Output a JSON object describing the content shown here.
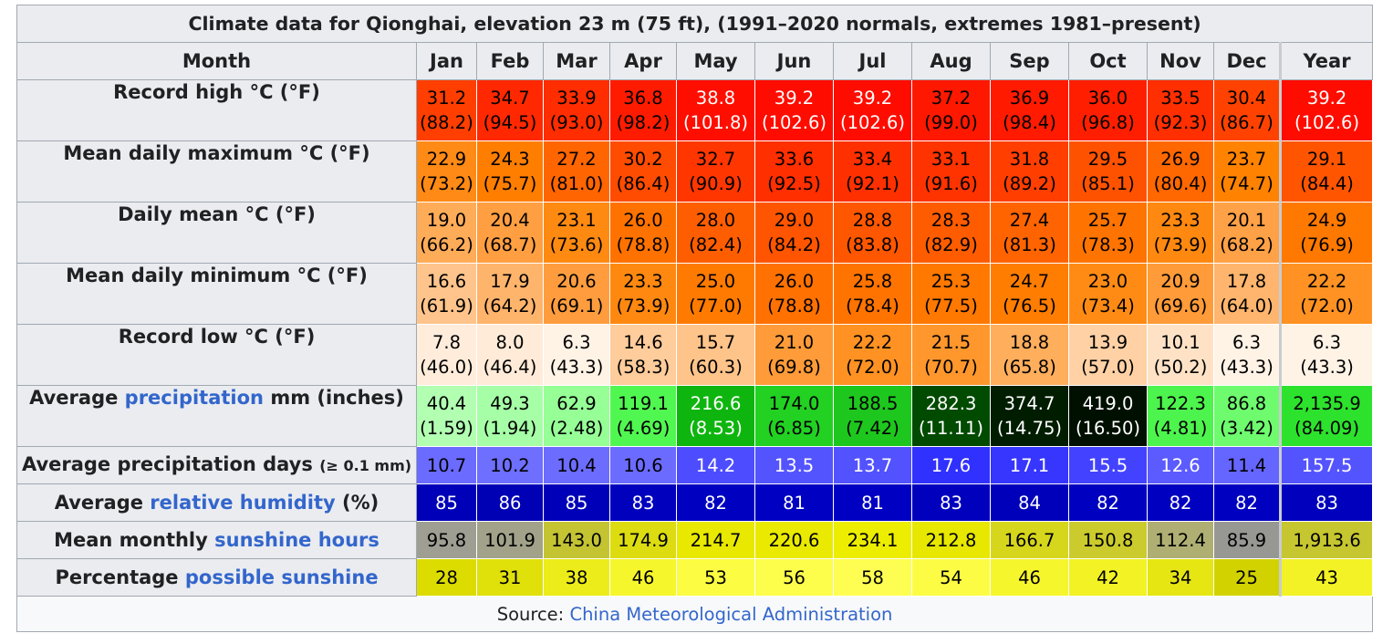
{
  "title": "Climate data for Qionghai, elevation 23 m (75 ft), (1991–2020 normals, extremes 1981–present)",
  "header": {
    "row_label": "Month",
    "months": [
      "Jan",
      "Feb",
      "Mar",
      "Apr",
      "May",
      "Jun",
      "Jul",
      "Aug",
      "Sep",
      "Oct",
      "Nov",
      "Dec"
    ],
    "year_label": "Year"
  },
  "rows": [
    {
      "label_main": "Record high °C (°F)",
      "values": [
        "31.2",
        "34.7",
        "33.9",
        "36.8",
        "38.8",
        "39.2",
        "39.2",
        "37.2",
        "36.9",
        "36.0",
        "33.5",
        "30.4",
        "39.2"
      ],
      "paren": [
        "(88.2)",
        "(94.5)",
        "(93.0)",
        "(98.2)",
        "(101.8)",
        "(102.6)",
        "(102.6)",
        "(99.0)",
        "(98.4)",
        "(96.8)",
        "(92.3)",
        "(86.7)",
        "(102.6)"
      ],
      "bg": [
        "#ff3e00",
        "#ff2800",
        "#ff2d00",
        "#ff1b00",
        "#ff0e00",
        "#ff0c00",
        "#ff0c00",
        "#ff1800",
        "#ff1a00",
        "#ff1f00",
        "#ff2f00",
        "#ff4200",
        "#ff0c00"
      ],
      "fg": [
        "#000000",
        "#000000",
        "#000000",
        "#000000",
        "#ffffff",
        "#ffffff",
        "#ffffff",
        "#000000",
        "#000000",
        "#000000",
        "#000000",
        "#000000",
        "#ffffff"
      ]
    },
    {
      "label_main": "Mean daily maximum °C (°F)",
      "values": [
        "22.9",
        "24.3",
        "27.2",
        "30.2",
        "32.7",
        "33.6",
        "33.4",
        "33.1",
        "31.8",
        "29.5",
        "26.9",
        "23.7",
        "29.1"
      ],
      "paren": [
        "(73.2)",
        "(75.7)",
        "(81.0)",
        "(86.4)",
        "(90.9)",
        "(92.5)",
        "(92.1)",
        "(91.6)",
        "(89.2)",
        "(85.1)",
        "(80.4)",
        "(74.7)",
        "(84.4)"
      ],
      "bg": [
        "#ff8a15",
        "#ff7e00",
        "#ff6500",
        "#ff4c00",
        "#ff3600",
        "#ff2f00",
        "#ff3000",
        "#ff3300",
        "#ff3e00",
        "#ff5200",
        "#ff6800",
        "#ff8300",
        "#ff5500"
      ],
      "fg": [
        "#000000",
        "#000000",
        "#000000",
        "#000000",
        "#000000",
        "#000000",
        "#000000",
        "#000000",
        "#000000",
        "#000000",
        "#000000",
        "#000000",
        "#000000"
      ]
    },
    {
      "label_main": "Daily mean °C (°F)",
      "values": [
        "19.0",
        "20.4",
        "23.1",
        "26.0",
        "28.0",
        "29.0",
        "28.8",
        "28.3",
        "27.4",
        "25.7",
        "23.3",
        "20.1",
        "24.9"
      ],
      "paren": [
        "(66.2)",
        "(68.7)",
        "(73.6)",
        "(78.8)",
        "(82.4)",
        "(84.2)",
        "(83.8)",
        "(82.9)",
        "(81.3)",
        "(78.3)",
        "(73.9)",
        "(68.2)",
        "(76.9)"
      ],
      "bg": [
        "#ffac59",
        "#ff9f41",
        "#ff8a12",
        "#ff7200",
        "#ff5e00",
        "#ff5500",
        "#ff5700",
        "#ff5c00",
        "#ff6400",
        "#ff7400",
        "#ff8910",
        "#ffa146",
        "#ff7900"
      ],
      "fg": [
        "#000000",
        "#000000",
        "#000000",
        "#000000",
        "#000000",
        "#000000",
        "#000000",
        "#000000",
        "#000000",
        "#000000",
        "#000000",
        "#000000",
        "#000000"
      ]
    },
    {
      "label_main": "Mean daily minimum °C (°F)",
      "values": [
        "16.6",
        "17.9",
        "20.6",
        "23.3",
        "25.0",
        "26.0",
        "25.8",
        "25.3",
        "24.7",
        "23.0",
        "20.9",
        "17.8",
        "22.2"
      ],
      "paren": [
        "(61.9)",
        "(64.2)",
        "(69.1)",
        "(73.9)",
        "(77.0)",
        "(78.8)",
        "(78.4)",
        "(77.5)",
        "(76.5)",
        "(73.4)",
        "(69.6)",
        "(64.0)",
        "(72.0)"
      ],
      "bg": [
        "#ffc48b",
        "#ffb46b",
        "#ff9d3e",
        "#ff8910",
        "#ff7a00",
        "#ff7100",
        "#ff7300",
        "#ff7800",
        "#ff7d00",
        "#ff8b14",
        "#ff9b38",
        "#ffb56d",
        "#ff9222"
      ],
      "fg": [
        "#000000",
        "#000000",
        "#000000",
        "#000000",
        "#000000",
        "#000000",
        "#000000",
        "#000000",
        "#000000",
        "#000000",
        "#000000",
        "#000000",
        "#000000"
      ]
    },
    {
      "label_main": "Record low °C (°F)",
      "values": [
        "7.8",
        "8.0",
        "6.3",
        "14.6",
        "15.7",
        "21.0",
        "22.2",
        "21.5",
        "18.8",
        "13.9",
        "10.1",
        "6.3",
        "6.3"
      ],
      "paren": [
        "(46.0)",
        "(46.4)",
        "(43.3)",
        "(58.3)",
        "(60.3)",
        "(69.8)",
        "(72.0)",
        "(70.7)",
        "(65.8)",
        "(57.0)",
        "(50.2)",
        "(43.3)",
        "(43.3)"
      ],
      "bg": [
        "#ffecdb",
        "#ffebd8",
        "#fff3e6",
        "#ffcc9b",
        "#ffc48a",
        "#ff9b38",
        "#ff9222",
        "#ff972c",
        "#ffae5c",
        "#ffd1a5",
        "#ffe2c6",
        "#fff3e6",
        "#fff3e6"
      ],
      "fg": [
        "#000000",
        "#000000",
        "#000000",
        "#000000",
        "#000000",
        "#000000",
        "#000000",
        "#000000",
        "#000000",
        "#000000",
        "#000000",
        "#000000",
        "#000000"
      ]
    },
    {
      "label_pre": "Average ",
      "label_link": "precipitation",
      "label_post": " mm (inches)",
      "values": [
        "40.4",
        "49.3",
        "62.9",
        "119.1",
        "216.6",
        "174.0",
        "188.5",
        "282.3",
        "374.7",
        "419.0",
        "122.3",
        "86.8",
        "2,135.9"
      ],
      "paren": [
        "(1.59)",
        "(1.94)",
        "(2.48)",
        "(4.69)",
        "(8.53)",
        "(6.85)",
        "(7.42)",
        "(11.11)",
        "(14.75)",
        "(16.50)",
        "(4.81)",
        "(3.42)",
        "(84.09)"
      ],
      "bg": [
        "#b2ffb2",
        "#a6ffa6",
        "#96ff96",
        "#51f751",
        "#0fb50f",
        "#22d122",
        "#1ec71e",
        "#004b00",
        "#001d00",
        "#001000",
        "#4df44d",
        "#6efc6e",
        "#2de22d"
      ],
      "fg": [
        "#000000",
        "#000000",
        "#000000",
        "#000000",
        "#ffffff",
        "#000000",
        "#000000",
        "#ffffff",
        "#ffffff",
        "#ffffff",
        "#000000",
        "#000000",
        "#000000"
      ]
    },
    {
      "label_pre": "Average precipitation days ",
      "label_small": "(≥ 0.1 mm)",
      "values": [
        "10.7",
        "10.2",
        "10.4",
        "10.6",
        "14.2",
        "13.5",
        "13.7",
        "17.6",
        "17.1",
        "15.5",
        "12.6",
        "11.4",
        "157.5"
      ],
      "bg": [
        "#6b6bff",
        "#6e6eff",
        "#6c6cff",
        "#6b6bff",
        "#4d4dff",
        "#5454ff",
        "#5252ff",
        "#3131ff",
        "#3636ff",
        "#4343ff",
        "#5b5bff",
        "#6565ff",
        "#5454ff"
      ],
      "fg": [
        "#000000",
        "#000000",
        "#000000",
        "#000000",
        "#ffffff",
        "#ffffff",
        "#ffffff",
        "#ffffff",
        "#ffffff",
        "#ffffff",
        "#ffffff",
        "#000000",
        "#ffffff"
      ]
    },
    {
      "label_pre": "Average ",
      "label_link": "relative humidity",
      "label_post": " (%)",
      "values": [
        "85",
        "86",
        "85",
        "83",
        "82",
        "81",
        "81",
        "83",
        "84",
        "82",
        "82",
        "82",
        "83"
      ],
      "bg": [
        "#0000b8",
        "#0000b5",
        "#0000b8",
        "#0000bd",
        "#0000c0",
        "#0000c3",
        "#0000c3",
        "#0000bd",
        "#0000ba",
        "#0000c0",
        "#0000c0",
        "#0000c0",
        "#0000bd"
      ],
      "fg": [
        "#ffffff",
        "#ffffff",
        "#ffffff",
        "#ffffff",
        "#ffffff",
        "#ffffff",
        "#ffffff",
        "#ffffff",
        "#ffffff",
        "#ffffff",
        "#ffffff",
        "#ffffff",
        "#ffffff"
      ]
    },
    {
      "label_pre": "Mean monthly ",
      "label_link": "sunshine hours",
      "values": [
        "95.8",
        "101.9",
        "143.0",
        "174.9",
        "214.7",
        "220.6",
        "234.1",
        "212.8",
        "166.7",
        "150.8",
        "112.4",
        "85.9",
        "1,913.6"
      ],
      "bg": [
        "#9e9e93",
        "#a2a28a",
        "#c4c433",
        "#dcdc11",
        "#e8e800",
        "#eaea00",
        "#eded00",
        "#e7e700",
        "#d6d61d",
        "#cbcb2e",
        "#afaf74",
        "#979794",
        "#c6c630"
      ],
      "fg": [
        "#000000",
        "#000000",
        "#000000",
        "#000000",
        "#000000",
        "#000000",
        "#000000",
        "#000000",
        "#000000",
        "#000000",
        "#000000",
        "#000000",
        "#000000"
      ]
    },
    {
      "label_pre": "Percentage ",
      "label_link": "possible sunshine",
      "values": [
        "28",
        "31",
        "38",
        "46",
        "53",
        "56",
        "58",
        "54",
        "46",
        "42",
        "34",
        "25",
        "43"
      ],
      "bg": [
        "#dcdc00",
        "#e0e00b",
        "#ecec1a",
        "#f6f62d",
        "#fcfc42",
        "#fdfd4c",
        "#fefe52",
        "#fcfc45",
        "#f6f62d",
        "#f2f224",
        "#e6e613",
        "#d2d200",
        "#f2f226"
      ],
      "fg": [
        "#000000",
        "#000000",
        "#000000",
        "#000000",
        "#000000",
        "#000000",
        "#000000",
        "#000000",
        "#000000",
        "#000000",
        "#000000",
        "#000000",
        "#000000"
      ]
    }
  ],
  "source": {
    "prefix": "Source: ",
    "link": "China Meteorological Administration"
  }
}
